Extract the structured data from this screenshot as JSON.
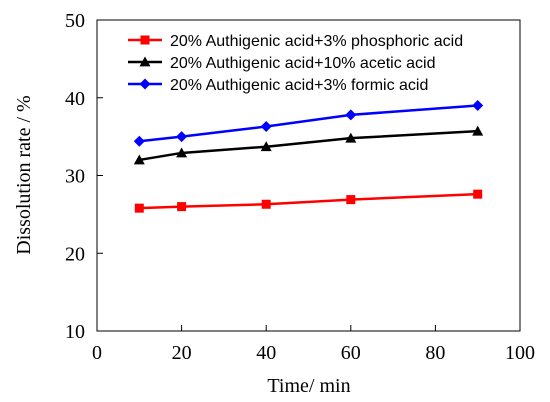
{
  "chart_data": {
    "type": "line",
    "xlabel": "Time/ min",
    "ylabel": "Dissolution rate / %",
    "xlim": [
      0,
      100
    ],
    "ylim": [
      10,
      50
    ],
    "xticks": [
      0,
      20,
      40,
      60,
      80,
      100
    ],
    "yticks": [
      10,
      20,
      30,
      40,
      50
    ],
    "grid": false,
    "legend_position": "top-right",
    "x": [
      10,
      20,
      40,
      60,
      90
    ],
    "series": [
      {
        "name": "20% Authigenic acid+3% phosphoric acid",
        "values": [
          25.8,
          26.0,
          26.3,
          26.9,
          27.6
        ],
        "color": "#ff0000",
        "marker": "square"
      },
      {
        "name": "20% Authigenic acid+10% acetic acid",
        "values": [
          32.0,
          32.9,
          33.7,
          34.8,
          35.7
        ],
        "color": "#000000",
        "marker": "triangle"
      },
      {
        "name": "20% Authigenic acid+3% formic acid",
        "values": [
          34.4,
          35.0,
          36.3,
          37.8,
          39.0
        ],
        "color": "#0000ff",
        "marker": "diamond"
      }
    ]
  }
}
